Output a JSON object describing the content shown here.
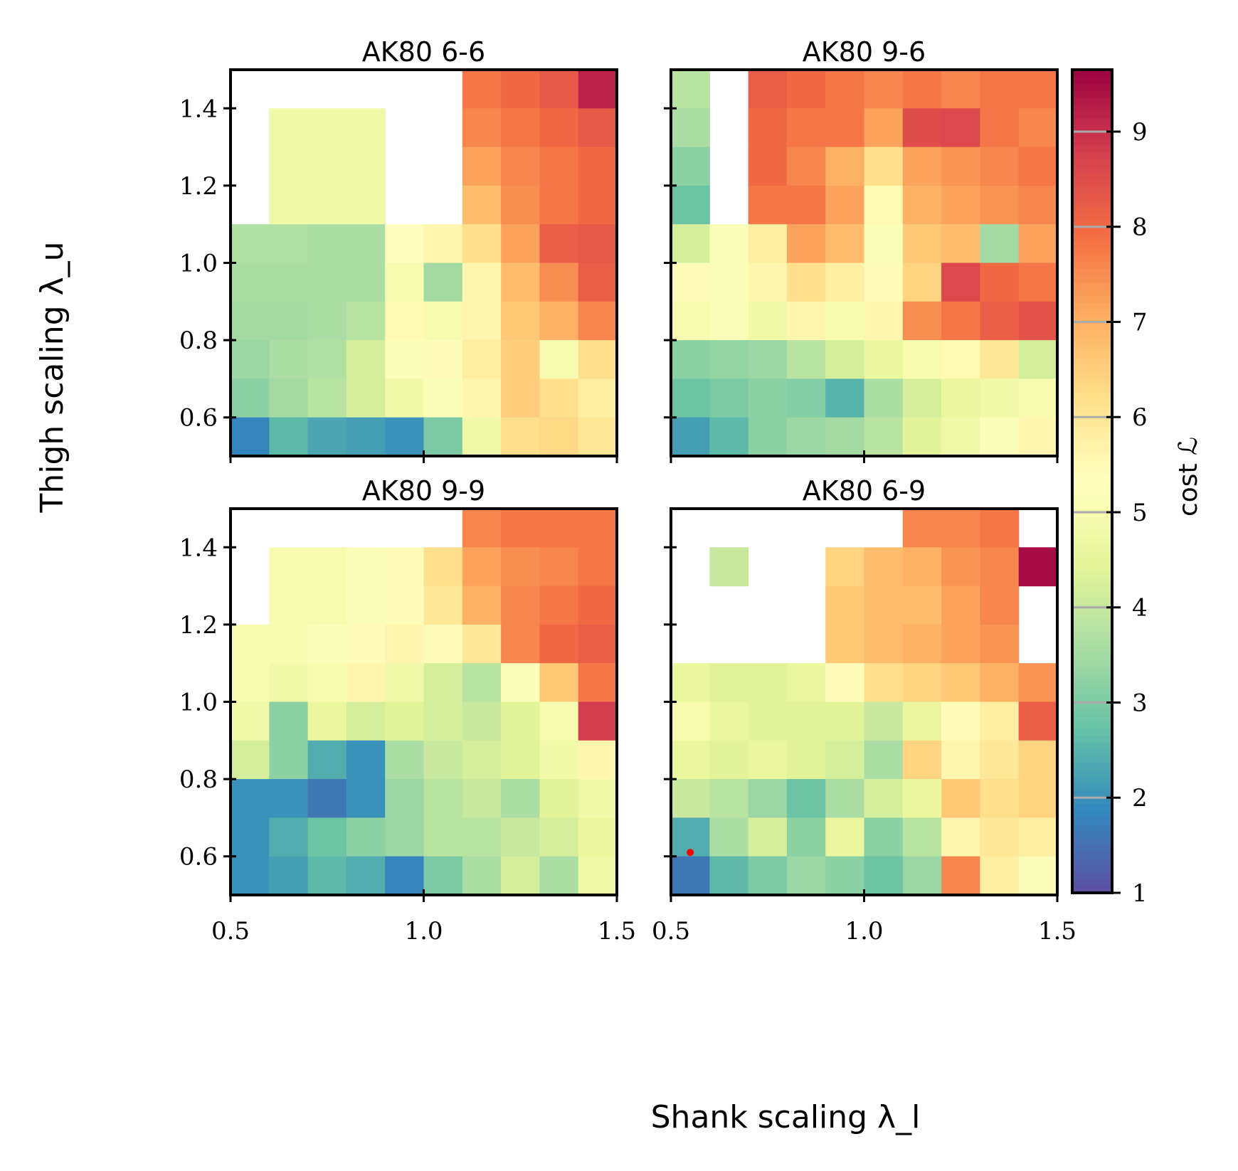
{
  "chart_data": {
    "type": "heatmap",
    "xlabel": "Shank scaling λ_l",
    "ylabel": "Thigh scaling λ_u",
    "xlim": [
      0.5,
      1.5
    ],
    "ylim": [
      0.5,
      1.5
    ],
    "xticks": [
      "0.5",
      "1.0",
      "1.5"
    ],
    "yticks": [
      "0.6",
      "0.8",
      "1.0",
      "1.2",
      "1.4"
    ],
    "x_centers": [
      0.55,
      0.65,
      0.75,
      0.85,
      0.95,
      1.05,
      1.15,
      1.25,
      1.35,
      1.45
    ],
    "y_centers_top_to_bottom": [
      1.45,
      1.35,
      1.25,
      1.15,
      1.05,
      0.95,
      0.85,
      0.75,
      0.65,
      0.55
    ],
    "colormap": "Spectral_r",
    "colormap_stops": [
      "#5e4fa2",
      "#3288bd",
      "#66c2a5",
      "#abdda4",
      "#e6f598",
      "#ffffbf",
      "#fee08b",
      "#fdae61",
      "#f46d43",
      "#d53e4f",
      "#9e0142"
    ],
    "colorbar": {
      "label": "cost ℒ",
      "range": [
        1,
        9.65
      ],
      "ticks": [
        "1",
        "2",
        "3",
        "4",
        "5",
        "6",
        "7",
        "8",
        "9"
      ]
    },
    "marker": {
      "panel": 3,
      "x": 0.55,
      "y": 0.61,
      "color": "#ff0000"
    },
    "panels": [
      {
        "title": "AK80 6-6",
        "values": [
          [
            null,
            null,
            null,
            null,
            null,
            null,
            7.8,
            8.0,
            8.3,
            9.2
          ],
          [
            null,
            4.8,
            4.8,
            4.8,
            null,
            null,
            7.6,
            7.8,
            8.0,
            8.3
          ],
          [
            null,
            4.8,
            4.8,
            4.8,
            null,
            null,
            7.2,
            7.6,
            7.8,
            8.0
          ],
          [
            null,
            4.8,
            4.8,
            4.8,
            null,
            null,
            6.8,
            7.5,
            7.8,
            8.0
          ],
          [
            3.7,
            3.7,
            3.6,
            3.6,
            5.3,
            5.6,
            6.2,
            7.2,
            8.2,
            8.3
          ],
          [
            3.6,
            3.6,
            3.6,
            3.6,
            5.0,
            3.5,
            5.6,
            6.8,
            7.5,
            8.2
          ],
          [
            3.5,
            3.5,
            3.6,
            3.8,
            5.5,
            5.0,
            5.6,
            6.6,
            7.0,
            7.6
          ],
          [
            3.4,
            3.6,
            3.7,
            4.2,
            5.2,
            5.4,
            5.8,
            6.5,
            5.0,
            6.2
          ],
          [
            3.2,
            3.5,
            3.8,
            4.2,
            4.8,
            5.2,
            5.6,
            6.5,
            6.2,
            5.8
          ],
          [
            1.8,
            2.6,
            2.3,
            2.2,
            2.0,
            3.0,
            4.8,
            6.2,
            6.3,
            6.0
          ]
        ]
      },
      {
        "title": "AK80 9-6",
        "values": [
          [
            3.8,
            null,
            8.2,
            8.0,
            7.8,
            7.6,
            7.8,
            7.6,
            7.8,
            7.8
          ],
          [
            3.6,
            null,
            8.0,
            7.8,
            7.8,
            7.2,
            8.5,
            8.6,
            7.8,
            7.6
          ],
          [
            3.2,
            null,
            8.0,
            7.6,
            7.0,
            6.2,
            7.2,
            7.4,
            7.6,
            7.8
          ],
          [
            2.8,
            null,
            7.8,
            7.8,
            7.2,
            5.5,
            7.0,
            7.2,
            7.4,
            7.6
          ],
          [
            4.2,
            5.2,
            5.8,
            7.2,
            6.8,
            5.2,
            6.6,
            6.8,
            3.5,
            7.2
          ],
          [
            5.4,
            5.2,
            5.6,
            6.2,
            5.8,
            5.4,
            6.4,
            8.6,
            8.0,
            7.8
          ],
          [
            5.0,
            5.2,
            4.8,
            5.6,
            5.0,
            5.6,
            7.5,
            7.8,
            8.2,
            8.4
          ],
          [
            3.2,
            3.3,
            3.4,
            3.8,
            4.2,
            4.6,
            5.0,
            5.5,
            6.0,
            4.2
          ],
          [
            2.8,
            3.0,
            3.2,
            3.1,
            2.5,
            3.6,
            4.2,
            4.6,
            4.8,
            5.0
          ],
          [
            2.2,
            2.6,
            3.2,
            3.4,
            3.5,
            3.8,
            4.4,
            4.8,
            5.2,
            5.6
          ]
        ]
      },
      {
        "title": "AK80 9-9",
        "values": [
          [
            null,
            null,
            null,
            null,
            null,
            null,
            7.6,
            7.8,
            7.8,
            7.8
          ],
          [
            null,
            5.0,
            5.0,
            5.2,
            5.4,
            6.2,
            7.2,
            7.5,
            7.6,
            7.8
          ],
          [
            null,
            5.0,
            5.0,
            5.2,
            5.4,
            6.0,
            7.0,
            7.6,
            7.8,
            8.0
          ],
          [
            5.0,
            5.0,
            5.2,
            5.4,
            5.6,
            5.4,
            6.0,
            7.6,
            8.0,
            8.2
          ],
          [
            5.0,
            4.8,
            5.0,
            5.6,
            4.8,
            4.2,
            3.8,
            5.2,
            6.6,
            7.8
          ],
          [
            4.8,
            3.2,
            4.6,
            4.2,
            4.4,
            4.2,
            4.0,
            4.4,
            5.0,
            8.8
          ],
          [
            4.2,
            3.2,
            2.4,
            2.0,
            3.6,
            4.0,
            4.2,
            4.4,
            4.8,
            5.6
          ],
          [
            2.0,
            2.0,
            1.6,
            2.0,
            3.4,
            3.8,
            4.0,
            3.6,
            4.4,
            4.8
          ],
          [
            2.0,
            2.4,
            2.8,
            3.2,
            3.4,
            3.8,
            3.8,
            4.0,
            4.2,
            4.6
          ],
          [
            2.0,
            2.2,
            2.6,
            2.4,
            1.8,
            3.0,
            3.6,
            4.2,
            3.6,
            4.8
          ]
        ]
      },
      {
        "title": "AK80 6-9",
        "values": [
          [
            null,
            null,
            null,
            null,
            null,
            null,
            7.6,
            7.6,
            7.8,
            null
          ],
          [
            null,
            4.0,
            null,
            null,
            6.4,
            6.8,
            7.0,
            7.4,
            7.6,
            9.5
          ],
          [
            null,
            null,
            null,
            null,
            6.6,
            6.8,
            6.8,
            7.2,
            7.6,
            null
          ],
          [
            null,
            null,
            null,
            null,
            6.6,
            6.8,
            7.0,
            7.2,
            7.4,
            null
          ],
          [
            4.6,
            4.4,
            4.4,
            4.6,
            5.4,
            6.2,
            6.4,
            6.6,
            7.0,
            7.4
          ],
          [
            5.0,
            4.6,
            4.4,
            4.4,
            4.4,
            4.0,
            4.6,
            5.4,
            5.8,
            8.2
          ],
          [
            4.6,
            4.4,
            4.6,
            4.4,
            4.2,
            3.6,
            6.4,
            5.6,
            6.0,
            6.4
          ],
          [
            4.0,
            3.8,
            3.4,
            2.8,
            3.6,
            4.2,
            4.6,
            6.6,
            6.2,
            6.4
          ],
          [
            2.4,
            3.6,
            4.2,
            3.2,
            4.6,
            3.2,
            3.8,
            5.6,
            6.0,
            5.8
          ],
          [
            1.6,
            2.6,
            3.0,
            3.4,
            3.2,
            2.8,
            3.4,
            7.6,
            5.8,
            5.2
          ]
        ]
      }
    ]
  }
}
